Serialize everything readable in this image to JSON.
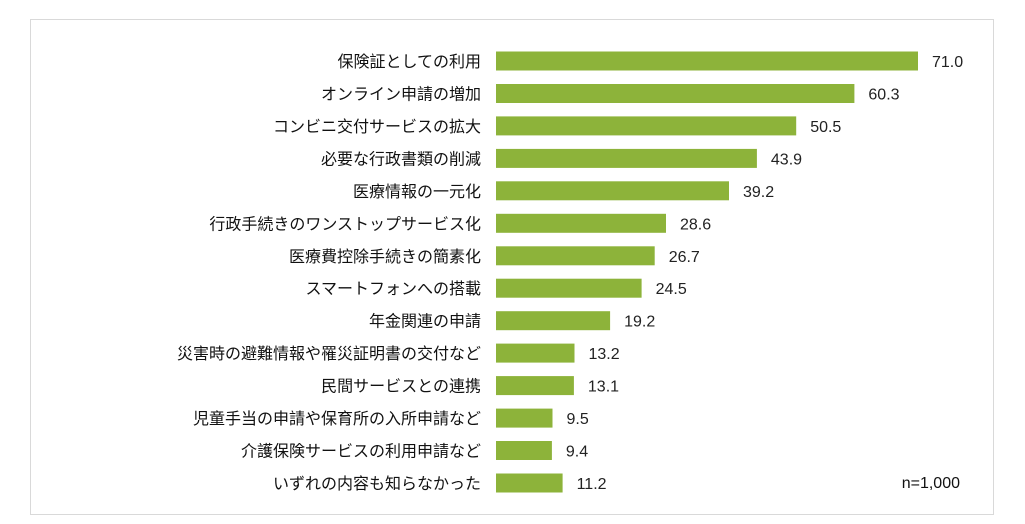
{
  "chart_data": {
    "type": "bar",
    "orientation": "horizontal",
    "categories": [
      "保険証としての利用",
      "オンライン申請の増加",
      "コンビニ交付サービスの拡大",
      "必要な行政書類の削減",
      "医療情報の一元化",
      "行政手続きのワンストップサービス化",
      "医療費控除手続きの簡素化",
      "スマートフォンへの搭載",
      "年金関連の申請",
      "災害時の避難情報や罹災証明書の交付など",
      "民間サービスとの連携",
      "児童手当の申請や保育所の入所申請など",
      "介護保険サービスの利用申請など",
      "いずれの内容も知らなかった"
    ],
    "values": [
      71.0,
      60.3,
      50.5,
      43.9,
      39.2,
      28.6,
      26.7,
      24.5,
      19.2,
      13.2,
      13.1,
      9.5,
      9.4,
      11.2
    ],
    "value_labels": [
      "71.0",
      "60.3",
      "50.5",
      "43.9",
      "39.2",
      "28.6",
      "26.7",
      "24.5",
      "19.2",
      "13.2",
      "13.1",
      "9.5",
      "9.4",
      "11.2"
    ],
    "note": "n=1,000",
    "xlim": [
      0,
      75
    ],
    "grid": false,
    "bar_color": "#8db33a"
  }
}
